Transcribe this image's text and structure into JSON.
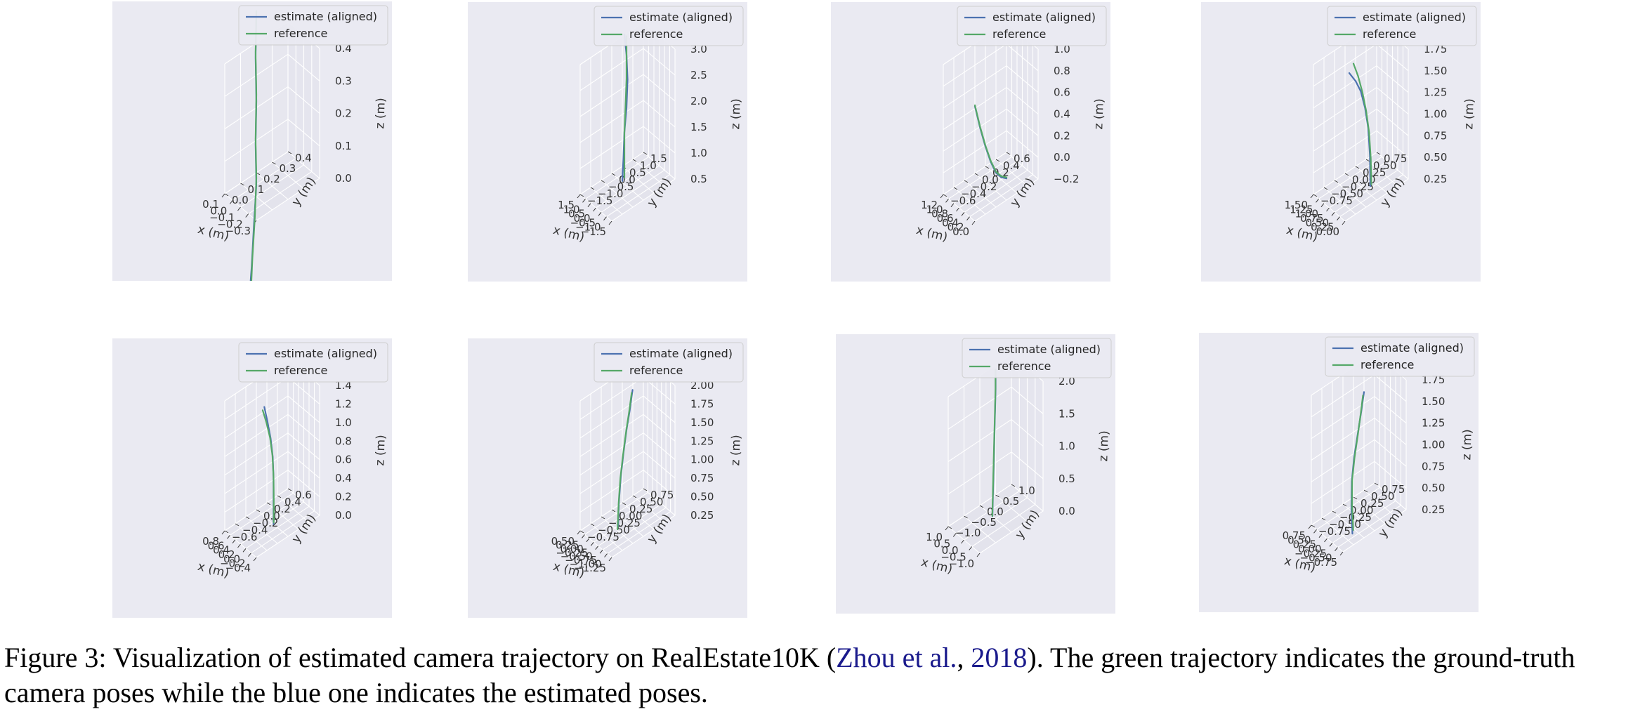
{
  "chart_data": [
    {
      "type": "line3d",
      "legend": [
        "estimate (aligned)",
        "reference"
      ],
      "legend_position": "top-right",
      "grid": true,
      "xlabel": "x (m)",
      "ylabel": "y (m)",
      "zlabel": "z (m)",
      "xticks": [
        "−0.3",
        "−0.2",
        "−0.1",
        "0.0",
        "0.1"
      ],
      "yticks": [
        "0.0",
        "0.1",
        "0.2",
        "0.3",
        "0.4"
      ],
      "zticks": [
        "0.0",
        "0.1",
        "0.2",
        "0.3",
        "0.4"
      ],
      "estimate": {
        "x": [
          0.03,
          0.02,
          0.01,
          0.0,
          0.01,
          0.02,
          0.03,
          0.04
        ],
        "y": [
          0.12,
          0.13,
          0.14,
          0.15,
          0.15,
          0.16,
          0.16,
          0.17
        ],
        "z": [
          -0.35,
          -0.25,
          -0.12,
          0.0,
          0.12,
          0.25,
          0.38,
          0.5
        ]
      },
      "reference": {
        "x": [
          0.01,
          0.01,
          0.0,
          0.0,
          0.01,
          0.02,
          0.03,
          0.04
        ],
        "y": [
          0.12,
          0.13,
          0.14,
          0.15,
          0.15,
          0.16,
          0.16,
          0.17
        ],
        "z": [
          -0.33,
          -0.22,
          -0.1,
          0.02,
          0.14,
          0.27,
          0.4,
          0.52
        ]
      }
    },
    {
      "type": "line3d",
      "legend": [
        "estimate (aligned)",
        "reference"
      ],
      "legend_position": "top-right",
      "grid": true,
      "xlabel": "x (m)",
      "ylabel": "y (m)",
      "zlabel": "z (m)",
      "xticks": [
        "−1.5",
        "−1.0",
        "−0.5",
        "0.0",
        "0.5",
        "1.0",
        "1.5"
      ],
      "yticks": [
        "−1.5",
        "−1.0",
        "−0.5",
        "0.0",
        "0.5",
        "1.0",
        "1.5"
      ],
      "zticks": [
        "0.5",
        "1.0",
        "1.5",
        "2.0",
        "2.5",
        "3.0"
      ],
      "estimate": {
        "x": [
          0.9,
          0.6,
          0.3,
          0.1,
          0.2,
          0.5,
          0.9
        ],
        "y": [
          0.2,
          0.1,
          0.0,
          0.0,
          0.1,
          0.2,
          0.3
        ],
        "z": [
          0.4,
          0.9,
          1.5,
          2.0,
          2.5,
          2.9,
          3.2
        ]
      },
      "reference": {
        "x": [
          0.7,
          0.5,
          0.3,
          0.2,
          0.3,
          0.5,
          0.7
        ],
        "y": [
          0.2,
          0.1,
          0.0,
          0.0,
          0.1,
          0.2,
          0.3
        ],
        "z": [
          0.5,
          1.0,
          1.5,
          2.0,
          2.5,
          2.9,
          3.2
        ]
      }
    },
    {
      "type": "line3d",
      "legend": [
        "estimate (aligned)",
        "reference"
      ],
      "legend_position": "top-right",
      "grid": true,
      "xlabel": "x (m)",
      "ylabel": "y (m)",
      "zlabel": "z (m)",
      "xticks": [
        "0.0",
        "0.2",
        "0.4",
        "0.6",
        "0.8",
        "1.0",
        "1.2"
      ],
      "yticks": [
        "−0.6",
        "−0.4",
        "−0.2",
        "0.0",
        "0.2",
        "0.4",
        "0.6"
      ],
      "zticks": [
        "−0.2",
        "0.0",
        "0.2",
        "0.4",
        "0.6",
        "0.8",
        "1.0"
      ],
      "estimate": {
        "x": [
          0.0,
          0.2,
          0.4,
          0.6,
          0.8,
          1.0,
          1.2
        ],
        "y": [
          0.0,
          0.0,
          0.0,
          0.0,
          0.0,
          0.0,
          0.0
        ],
        "z": [
          0.0,
          -0.03,
          -0.03,
          0.03,
          0.13,
          0.26,
          0.42
        ]
      },
      "reference": {
        "x": [
          0.0,
          0.2,
          0.4,
          0.6,
          0.8,
          1.0,
          1.2
        ],
        "y": [
          0.0,
          0.0,
          0.0,
          0.0,
          0.0,
          0.0,
          0.0
        ],
        "z": [
          0.01,
          -0.02,
          -0.02,
          0.04,
          0.14,
          0.27,
          0.43
        ]
      }
    },
    {
      "type": "line3d",
      "legend": [
        "estimate (aligned)",
        "reference"
      ],
      "legend_position": "top-right",
      "grid": true,
      "xlabel": "x (m)",
      "ylabel": "y (m)",
      "zlabel": "z (m)",
      "xticks": [
        "0.00",
        "0.25",
        "0.50",
        "0.75",
        "1.00",
        "1.25",
        "1.50"
      ],
      "yticks": [
        "−0.75",
        "−0.50",
        "−0.25",
        "0.00",
        "0.25",
        "0.50",
        "0.75"
      ],
      "zticks": [
        "0.25",
        "0.50",
        "0.75",
        "1.00",
        "1.25",
        "1.50",
        "1.75"
      ],
      "estimate": {
        "x": [
          0.3,
          0.32,
          0.4,
          0.55,
          0.75,
          1.0,
          1.3
        ],
        "y": [
          0.0,
          0.0,
          0.0,
          0.0,
          0.0,
          0.0,
          0.0
        ],
        "z": [
          0.35,
          0.7,
          1.0,
          1.2,
          1.35,
          1.42,
          1.45
        ]
      },
      "reference": {
        "x": [
          0.25,
          0.28,
          0.36,
          0.5,
          0.68,
          0.88,
          1.1
        ],
        "y": [
          0.0,
          0.0,
          0.0,
          0.0,
          0.0,
          0.0,
          0.0
        ],
        "z": [
          0.38,
          0.68,
          0.96,
          1.18,
          1.36,
          1.5,
          1.6
        ]
      }
    },
    {
      "type": "line3d",
      "legend": [
        "estimate (aligned)",
        "reference"
      ],
      "legend_position": "top-right",
      "grid": true,
      "xlabel": "x (m)",
      "ylabel": "y (m)",
      "zlabel": "z (m)",
      "xticks": [
        "−0.4",
        "−0.2",
        "0.0",
        "0.2",
        "0.4",
        "0.6",
        "0.8"
      ],
      "yticks": [
        "−0.6",
        "−0.4",
        "−0.2",
        "0.0",
        "0.2",
        "0.4",
        "0.6"
      ],
      "zticks": [
        "0.0",
        "0.2",
        "0.4",
        "0.6",
        "0.8",
        "1.0",
        "1.2",
        "1.4"
      ],
      "estimate": {
        "x": [
          0.15,
          0.15,
          0.15,
          0.18,
          0.26,
          0.38,
          0.5
        ],
        "y": [
          0.0,
          0.0,
          0.0,
          0.0,
          0.0,
          0.0,
          0.0
        ],
        "z": [
          0.0,
          0.25,
          0.5,
          0.72,
          0.9,
          1.05,
          1.18
        ]
      },
      "reference": {
        "x": [
          0.14,
          0.14,
          0.15,
          0.19,
          0.28,
          0.42,
          0.56
        ],
        "y": [
          0.0,
          0.0,
          0.0,
          0.0,
          0.0,
          0.0,
          0.0
        ],
        "z": [
          0.02,
          0.27,
          0.52,
          0.73,
          0.9,
          1.03,
          1.13
        ]
      }
    },
    {
      "type": "line3d",
      "legend": [
        "estimate (aligned)",
        "reference"
      ],
      "legend_position": "top-right",
      "grid": true,
      "xlabel": "x (m)",
      "ylabel": "y (m)",
      "zlabel": "z (m)",
      "xticks": [
        "−1.25",
        "−1.00",
        "−0.75",
        "−0.50",
        "−0.25",
        "0.00",
        "0.25",
        "0.50"
      ],
      "yticks": [
        "−0.75",
        "−0.50",
        "−0.25",
        "0.00",
        "0.25",
        "0.50",
        "0.75"
      ],
      "zticks": [
        "0.25",
        "0.50",
        "0.75",
        "1.00",
        "1.25",
        "1.50",
        "1.75",
        "2.00"
      ],
      "estimate": {
        "x": [
          0.15,
          0.1,
          0.0,
          -0.15,
          -0.32,
          -0.5,
          -0.65
        ],
        "y": [
          0.0,
          0.0,
          0.0,
          0.0,
          0.0,
          0.0,
          0.0
        ],
        "z": [
          0.1,
          0.45,
          0.8,
          1.15,
          1.5,
          1.8,
          2.1
        ]
      },
      "reference": {
        "x": [
          0.18,
          0.12,
          0.02,
          -0.13,
          -0.3,
          -0.47,
          -0.6
        ],
        "y": [
          0.0,
          0.0,
          0.0,
          0.0,
          0.0,
          0.0,
          0.0
        ],
        "z": [
          0.05,
          0.42,
          0.78,
          1.13,
          1.48,
          1.78,
          2.05
        ]
      }
    },
    {
      "type": "line3d",
      "legend": [
        "estimate (aligned)",
        "reference"
      ],
      "legend_position": "top-right",
      "grid": true,
      "xlabel": "x (m)",
      "ylabel": "y (m)",
      "zlabel": "z (m)",
      "xticks": [
        "−1.0",
        "−0.5",
        "0.0",
        "0.5",
        "1.0"
      ],
      "yticks": [
        "−1.0",
        "−0.5",
        "0.0",
        "0.5",
        "1.0"
      ],
      "zticks": [
        "0.0",
        "0.5",
        "1.0",
        "1.5",
        "2.0"
      ],
      "estimate": {
        "x": [
          0.2,
          0.15,
          0.1,
          0.05,
          0.0,
          0.0
        ],
        "y": [
          0.0,
          0.0,
          0.0,
          0.0,
          0.0,
          0.0
        ],
        "z": [
          0.0,
          0.5,
          1.0,
          1.5,
          2.0,
          2.3
        ]
      },
      "reference": {
        "x": [
          0.21,
          0.16,
          0.11,
          0.06,
          0.01,
          0.01
        ],
        "y": [
          0.0,
          0.0,
          0.0,
          0.0,
          0.0,
          0.0
        ],
        "z": [
          0.0,
          0.5,
          1.0,
          1.5,
          2.0,
          2.3
        ]
      }
    },
    {
      "type": "line3d",
      "legend": [
        "estimate (aligned)",
        "reference"
      ],
      "legend_position": "top-right",
      "grid": true,
      "xlabel": "x (m)",
      "ylabel": "y (m)",
      "zlabel": "z (m)",
      "xticks": [
        "−0.75",
        "−0.50",
        "−0.25",
        "0.00",
        "0.25",
        "0.50",
        "0.75"
      ],
      "yticks": [
        "−0.75",
        "−0.50",
        "−0.25",
        "0.00",
        "0.25",
        "0.50",
        "0.75"
      ],
      "zticks": [
        "0.25",
        "0.50",
        "0.75",
        "1.00",
        "1.25",
        "1.50",
        "1.75"
      ],
      "estimate": {
        "x": [
          0.3,
          0.35,
          0.33,
          0.22,
          0.05,
          -0.12,
          -0.25
        ],
        "y": [
          0.0,
          0.0,
          0.0,
          0.0,
          0.0,
          0.0,
          0.0
        ],
        "z": [
          0.0,
          0.3,
          0.6,
          0.9,
          1.2,
          1.5,
          1.75
        ]
      },
      "reference": {
        "x": [
          0.26,
          0.32,
          0.31,
          0.2,
          0.04,
          -0.1,
          -0.2
        ],
        "y": [
          0.0,
          0.0,
          0.0,
          0.0,
          0.0,
          0.0,
          0.0
        ],
        "z": [
          0.05,
          0.33,
          0.62,
          0.9,
          1.2,
          1.48,
          1.7
        ]
      }
    }
  ],
  "caption": {
    "prefix": "Figure 3:  Visualization of estimated camera trajectory on RealEstate10K (",
    "cite_author": "Zhou et al.",
    "cite_sep": ", ",
    "cite_year": "2018",
    "suffix": ").  The green trajectory indicates the ground-truth camera poses while the blue one indicates the estimated poses."
  },
  "colors": {
    "estimate": "#4c72b0",
    "reference": "#55a868",
    "pane": "#eaeaf2",
    "grid": "#ffffff",
    "tick": "#333333"
  }
}
